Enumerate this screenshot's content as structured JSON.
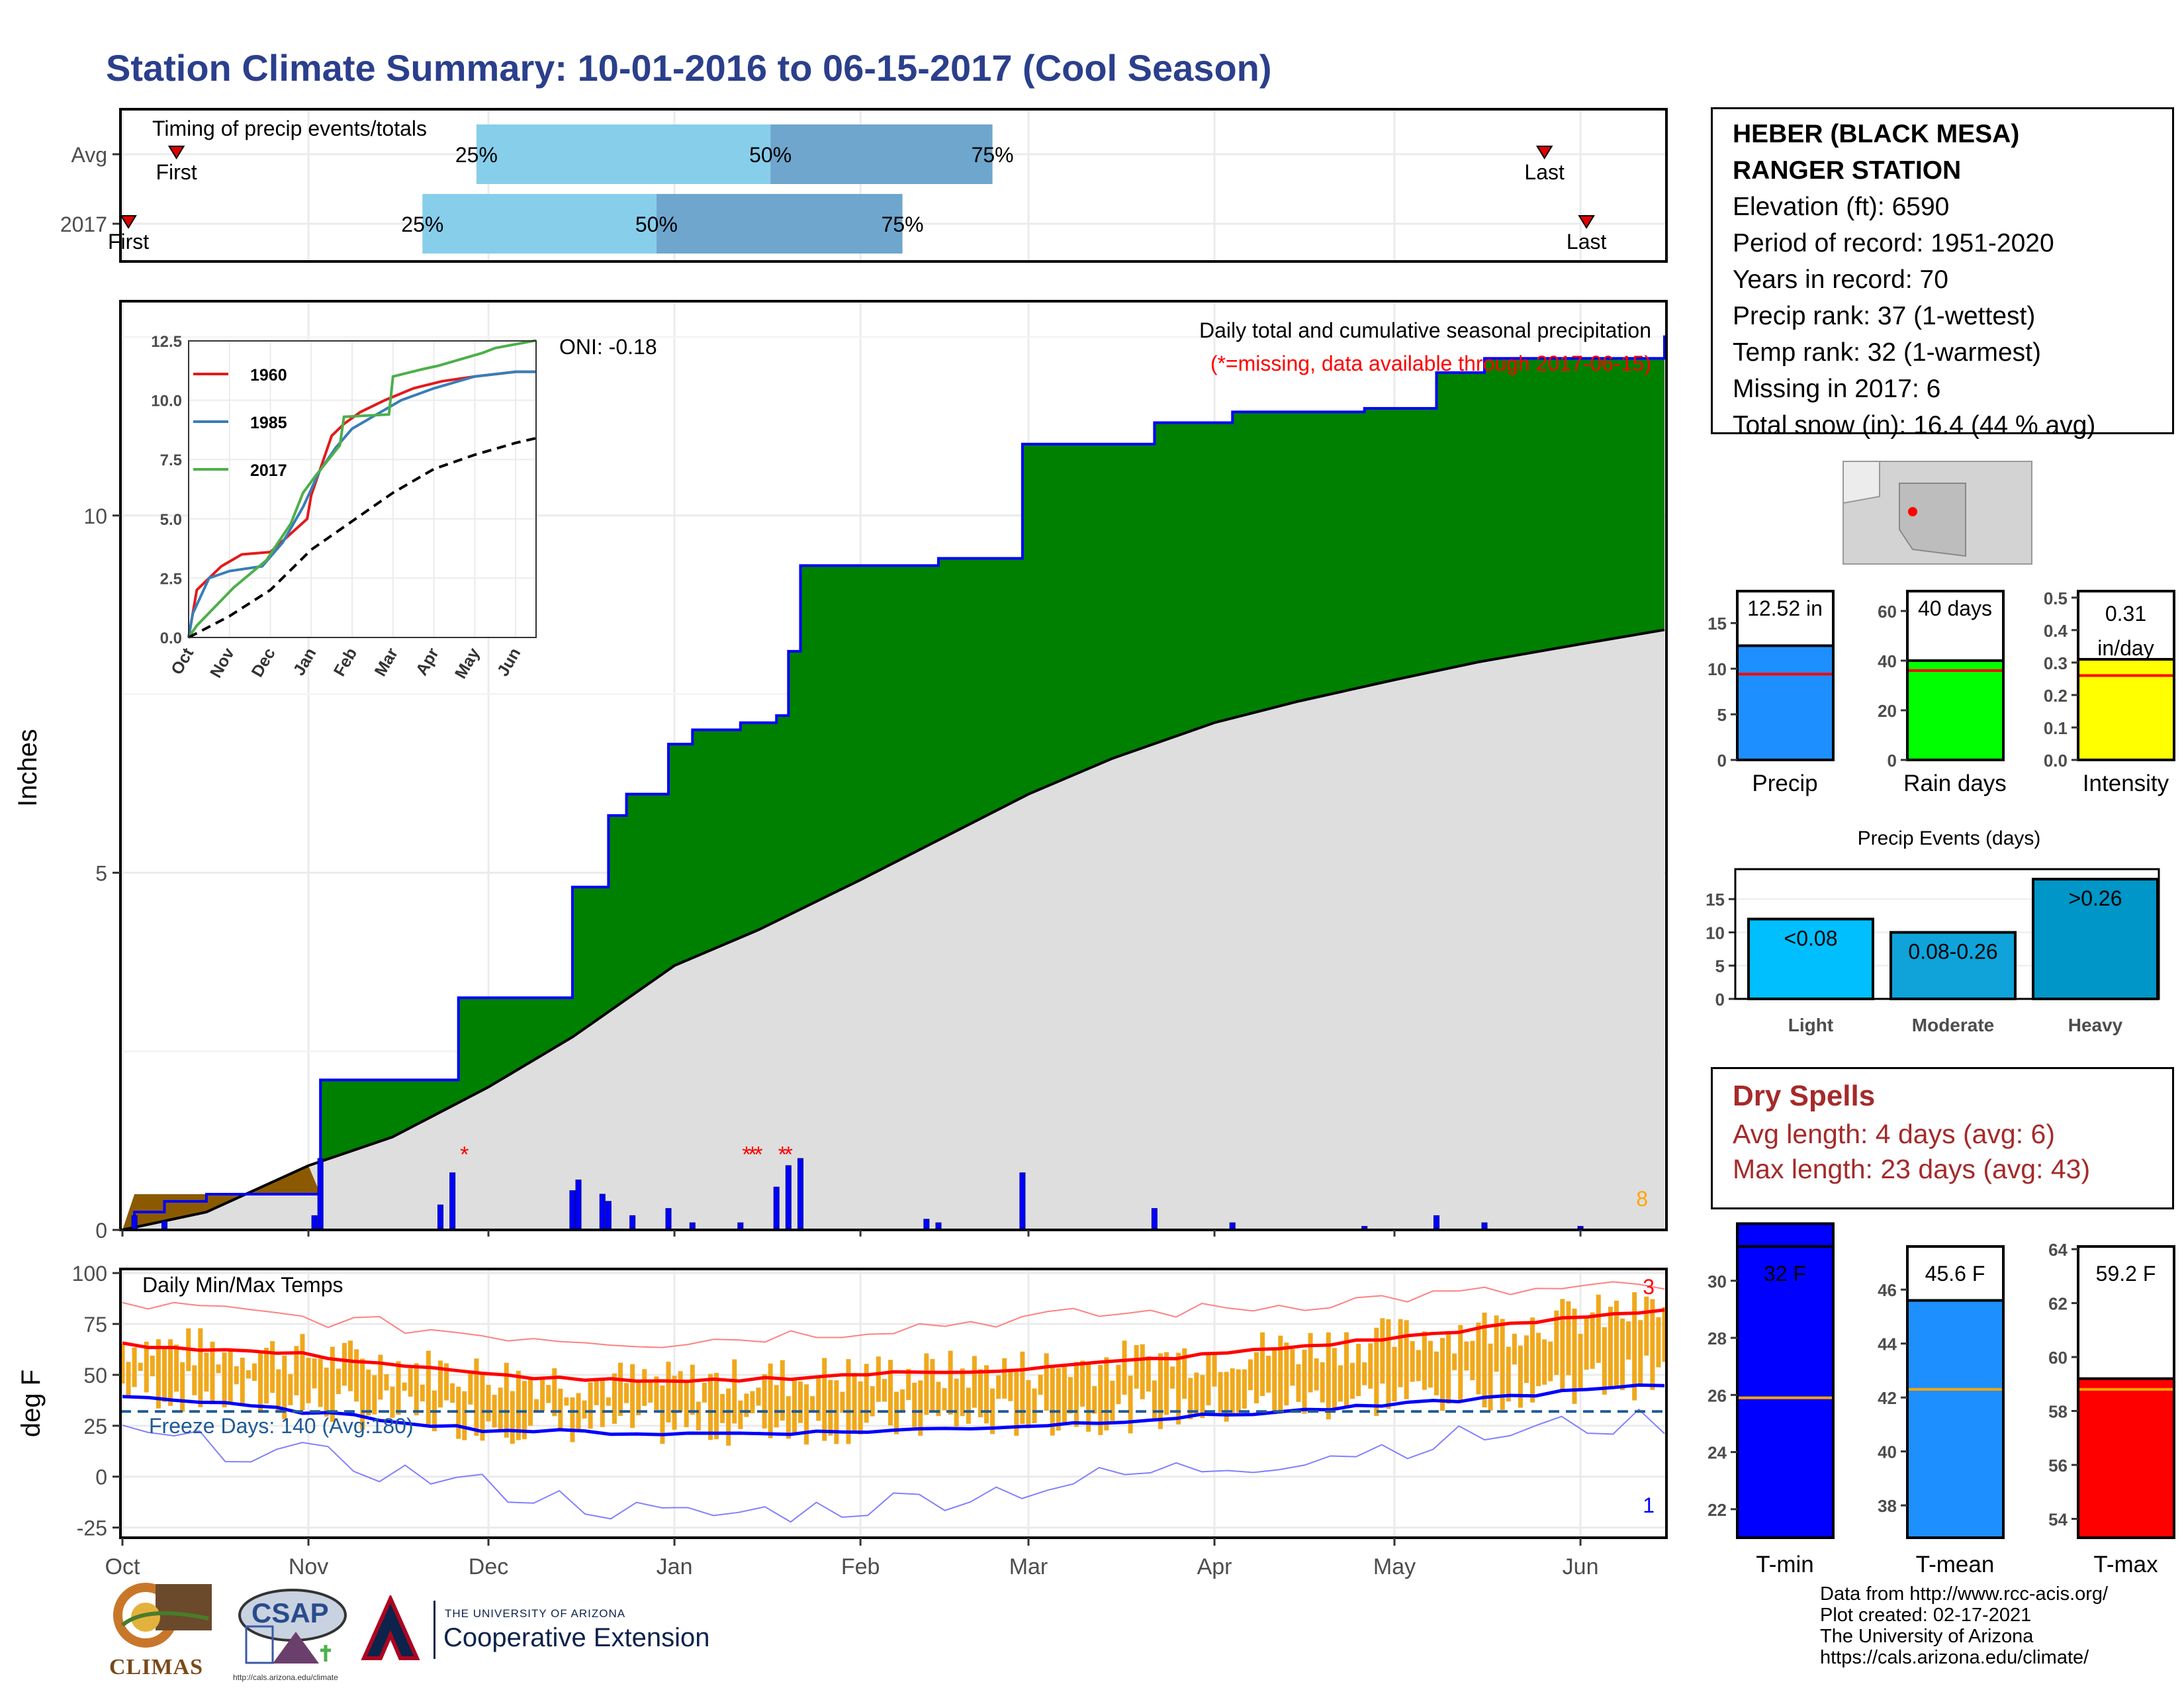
{
  "title": "Station Climate Summary: 10-01-2016 to 06-15-2017 (Cool Season)",
  "station": {
    "name_line1": "HEBER (BLACK MESA)",
    "name_line2": "RANGER STATION",
    "elevation": "Elevation (ft): 6590",
    "period": "Period of record: 1951-2020",
    "years": "Years in record: 70",
    "precip_rank": "Precip rank: 37 (1-wettest)",
    "temp_rank": "Temp rank: 32 (1-warmest)",
    "missing": "Missing in 2017: 6",
    "snow": "Total snow (in): 16.4 (44 % avg)"
  },
  "dry_spells": {
    "heading": "Dry Spells",
    "avg": "Avg length: 4 days (avg: 6)",
    "max": "Max length: 23 days (avg: 43)"
  },
  "credits": {
    "l1": "Data from http://www.rcc-acis.org/",
    "l2": "Plot created: 02-17-2021",
    "l3": "The University of Arizona",
    "l4": "https://cals.arizona.edu/climate/"
  },
  "logos": {
    "climas": "CLIMAS",
    "csap": "CSAP",
    "csap_url": "http://cals.arizona.edu/climate",
    "ua_small": "THE UNIVERSITY OF ARIZONA",
    "ua_big": "Cooperative Extension"
  },
  "colors": {
    "title": "#2b3f8c",
    "green": "#008000",
    "brown": "#8b5a00",
    "gray": "#dedede",
    "blue": "#0000ff",
    "orange": "#f0a81c",
    "red": "#ff0000",
    "lightblue": "#87ceeb",
    "steelblue": "#6ea6cd",
    "yellow": "#ffff00",
    "lime": "#00ff00",
    "dodger": "#1e8fff",
    "events_blue": "#00bfff",
    "dry_text": "#a52a2a"
  },
  "chart_data": [
    {
      "id": "timing",
      "type": "bar",
      "title": "Timing of precip events/totals",
      "categories": [
        "Avg",
        "2017"
      ],
      "x_ticks": [],
      "quartile_labels": [
        "25%",
        "50%",
        "75%"
      ],
      "marker_labels": {
        "first": "First",
        "last": "Last"
      },
      "series": [
        {
          "name": "Avg",
          "first": "2016-10-10",
          "q25": "2016-11-29",
          "q50": "2017-01-17",
          "q75": "2017-02-23",
          "last": "2017-05-26"
        },
        {
          "name": "2017",
          "first": "2016-10-02",
          "q25": "2016-11-20",
          "q50": "2016-12-29",
          "q75": "2017-02-08",
          "last": "2017-06-02"
        }
      ],
      "xlim": [
        "2016-10-01",
        "2017-06-15"
      ]
    },
    {
      "id": "precip",
      "type": "area",
      "title": "Daily total and cumulative seasonal precipitation",
      "subtitle": "(*=missing, data available through 2017-06-15)",
      "annotation": "ONI: -0.18",
      "corner_count": "8",
      "ylabel": "Inches",
      "ylim": [
        0,
        13.0
      ],
      "y_ticks": [
        0,
        5,
        10
      ],
      "x_ticks": [
        "Oct",
        "Nov",
        "Dec",
        "Jan",
        "Feb",
        "Mar",
        "Apr",
        "May",
        "Jun"
      ],
      "cumulative_2017": [
        [
          "2016-10-01",
          0.0
        ],
        [
          "2016-10-03",
          0.25
        ],
        [
          "2016-10-08",
          0.4
        ],
        [
          "2016-10-15",
          0.5
        ],
        [
          "2016-10-25",
          0.5
        ],
        [
          "2016-11-02",
          0.5
        ],
        [
          "2016-11-03",
          2.1
        ],
        [
          "2016-11-25",
          2.1
        ],
        [
          "2016-11-26",
          3.25
        ],
        [
          "2016-12-14",
          3.25
        ],
        [
          "2016-12-15",
          4.8
        ],
        [
          "2016-12-20",
          4.8
        ],
        [
          "2016-12-21",
          5.8
        ],
        [
          "2016-12-24",
          6.1
        ],
        [
          "2016-12-30",
          6.1
        ],
        [
          "2016-12-31",
          6.8
        ],
        [
          "2017-01-04",
          7.0
        ],
        [
          "2017-01-12",
          7.1
        ],
        [
          "2017-01-18",
          7.2
        ],
        [
          "2017-01-20",
          8.1
        ],
        [
          "2017-01-22",
          9.3
        ],
        [
          "2017-02-12",
          9.3
        ],
        [
          "2017-02-14",
          9.4
        ],
        [
          "2017-02-27",
          9.4
        ],
        [
          "2017-02-28",
          11.0
        ],
        [
          "2017-03-21",
          11.0
        ],
        [
          "2017-03-22",
          11.3
        ],
        [
          "2017-04-03",
          11.3
        ],
        [
          "2017-04-04",
          11.45
        ],
        [
          "2017-04-25",
          11.45
        ],
        [
          "2017-04-26",
          11.5
        ],
        [
          "2017-05-07",
          11.5
        ],
        [
          "2017-05-08",
          12.0
        ],
        [
          "2017-05-15",
          12.0
        ],
        [
          "2017-05-16",
          12.2
        ],
        [
          "2017-06-15",
          12.52
        ]
      ],
      "cumulative_avg": [
        [
          "2016-10-01",
          0.0
        ],
        [
          "2016-10-15",
          0.25
        ],
        [
          "2016-11-01",
          0.9
        ],
        [
          "2016-11-15",
          1.3
        ],
        [
          "2016-12-01",
          2.0
        ],
        [
          "2016-12-15",
          2.7
        ],
        [
          "2017-01-01",
          3.7
        ],
        [
          "2017-01-15",
          4.2
        ],
        [
          "2017-02-01",
          4.9
        ],
        [
          "2017-02-15",
          5.5
        ],
        [
          "2017-03-01",
          6.1
        ],
        [
          "2017-03-15",
          6.6
        ],
        [
          "2017-04-01",
          7.1
        ],
        [
          "2017-04-15",
          7.4
        ],
        [
          "2017-05-01",
          7.7
        ],
        [
          "2017-05-15",
          7.95
        ],
        [
          "2017-06-01",
          8.2
        ],
        [
          "2017-06-15",
          8.4
        ]
      ],
      "daily_bars": [
        [
          "2016-10-03",
          0.2
        ],
        [
          "2016-10-08",
          0.12
        ],
        [
          "2016-11-02",
          0.2
        ],
        [
          "2016-11-03",
          1.0
        ],
        [
          "2016-11-23",
          0.35
        ],
        [
          "2016-11-25",
          0.8
        ],
        [
          "2016-12-15",
          0.55
        ],
        [
          "2016-12-16",
          0.7
        ],
        [
          "2016-12-20",
          0.5
        ],
        [
          "2016-12-21",
          0.4
        ],
        [
          "2016-12-25",
          0.2
        ],
        [
          "2016-12-31",
          0.3
        ],
        [
          "2017-01-04",
          0.1
        ],
        [
          "2017-01-12",
          0.1
        ],
        [
          "2017-01-18",
          0.6
        ],
        [
          "2017-01-20",
          0.9
        ],
        [
          "2017-01-22",
          1.0
        ],
        [
          "2017-02-12",
          0.15
        ],
        [
          "2017-02-14",
          0.1
        ],
        [
          "2017-02-28",
          0.8
        ],
        [
          "2017-03-22",
          0.3
        ],
        [
          "2017-04-04",
          0.1
        ],
        [
          "2017-04-26",
          0.05
        ],
        [
          "2017-05-08",
          0.2
        ],
        [
          "2017-05-16",
          0.1
        ],
        [
          "2017-06-01",
          0.05
        ]
      ],
      "missing_days": [
        "2016-11-27",
        "2017-01-13",
        "2017-01-14",
        "2017-01-15",
        "2017-01-19",
        "2017-01-20"
      ],
      "inset": {
        "type": "line",
        "ylim": [
          0,
          12.5
        ],
        "y_ticks": [
          "0.0",
          "2.5",
          "5.0",
          "7.5",
          "10.0",
          "12.5"
        ],
        "x_ticks": [
          "Oct",
          "Nov",
          "Dec",
          "Jan",
          "Feb",
          "Mar",
          "Apr",
          "May",
          "Jun"
        ],
        "legend": [
          "1960",
          "1985",
          "2017"
        ],
        "series": [
          {
            "name": "1960",
            "color": "#e31a1c",
            "points": [
              [
                0,
                0
              ],
              [
                0.2,
                2.0
              ],
              [
                0.8,
                3.0
              ],
              [
                1.3,
                3.5
              ],
              [
                2.0,
                3.6
              ],
              [
                2.9,
                5.0
              ],
              [
                3.0,
                6.0
              ],
              [
                3.2,
                7.0
              ],
              [
                3.5,
                8.5
              ],
              [
                3.8,
                9.0
              ],
              [
                4.2,
                9.5
              ],
              [
                4.8,
                10.0
              ],
              [
                5.5,
                10.5
              ],
              [
                6.2,
                10.8
              ],
              [
                7.0,
                11.0
              ],
              [
                8.0,
                11.2
              ],
              [
                8.5,
                11.2
              ]
            ]
          },
          {
            "name": "1985",
            "color": "#377eb8",
            "points": [
              [
                0,
                0
              ],
              [
                0.1,
                1.0
              ],
              [
                0.5,
                2.5
              ],
              [
                1.0,
                2.8
              ],
              [
                1.8,
                3.0
              ],
              [
                2.3,
                4.0
              ],
              [
                2.8,
                5.5
              ],
              [
                3.2,
                7.0
              ],
              [
                3.6,
                8.0
              ],
              [
                4.0,
                8.8
              ],
              [
                4.5,
                9.3
              ],
              [
                5.2,
                10.0
              ],
              [
                6.0,
                10.5
              ],
              [
                7.0,
                11.0
              ],
              [
                8.0,
                11.2
              ],
              [
                8.5,
                11.2
              ]
            ]
          },
          {
            "name": "2017",
            "color": "#4daf4a",
            "points": [
              [
                0,
                0
              ],
              [
                0.2,
                0.5
              ],
              [
                1.1,
                2.1
              ],
              [
                1.9,
                3.25
              ],
              [
                2.5,
                4.8
              ],
              [
                2.8,
                6.1
              ],
              [
                3.1,
                6.8
              ],
              [
                3.7,
                8.1
              ],
              [
                3.8,
                9.3
              ],
              [
                4.9,
                9.4
              ],
              [
                5.0,
                11.0
              ],
              [
                5.7,
                11.3
              ],
              [
                6.1,
                11.45
              ],
              [
                7.2,
                12.0
              ],
              [
                7.5,
                12.2
              ],
              [
                8.5,
                12.52
              ]
            ]
          },
          {
            "name": "avg",
            "color": "#000000",
            "dash": true,
            "points": [
              [
                0,
                0
              ],
              [
                1.0,
                0.9
              ],
              [
                2.0,
                2.0
              ],
              [
                3.0,
                3.7
              ],
              [
                4.0,
                4.9
              ],
              [
                5.0,
                6.1
              ],
              [
                6.0,
                7.1
              ],
              [
                7.0,
                7.7
              ],
              [
                8.0,
                8.2
              ],
              [
                8.5,
                8.4
              ]
            ]
          }
        ]
      }
    },
    {
      "id": "bars_precip",
      "type": "bar",
      "categories": [
        "Precip",
        "Rain days",
        "Intensity"
      ],
      "values": [
        12.52,
        40,
        0.31
      ],
      "value_labels": [
        "12.52 in",
        "40 days",
        "0.31 in/day"
      ],
      "averages": [
        9.4,
        36,
        0.26
      ],
      "ylims": [
        [
          0,
          18.5
        ],
        [
          0,
          68
        ],
        [
          0,
          0.52
        ]
      ],
      "y_ticks": [
        [
          "0",
          "5",
          "10",
          "15"
        ],
        [
          "0",
          "20",
          "40",
          "60"
        ],
        [
          "0.0",
          "0.1",
          "0.2",
          "0.3",
          "0.4",
          "0.5"
        ]
      ]
    },
    {
      "id": "precip_events",
      "type": "bar",
      "title": "Precip Events (days)",
      "categories": [
        "Light",
        "Moderate",
        "Heavy"
      ],
      "bar_labels": [
        "<0.08",
        "0.08-0.26",
        ">0.26"
      ],
      "values": [
        12,
        10,
        18
      ],
      "ylim": [
        0,
        19.5
      ],
      "y_ticks": [
        "0",
        "5",
        "10",
        "15"
      ]
    },
    {
      "id": "temps",
      "type": "line",
      "title": "Daily Min/Max Temps",
      "ylabel": "deg F",
      "ylim": [
        -30,
        102
      ],
      "y_ticks": [
        "-25",
        "0",
        "25",
        "50",
        "75",
        "100"
      ],
      "x_ticks": [
        "Oct",
        "Nov",
        "Dec",
        "Jan",
        "Feb",
        "Mar",
        "Apr",
        "May",
        "Jun"
      ],
      "freeze_label": "Freeze Days: 140 (Avg:180)",
      "freeze_line": 32,
      "top_count": "3",
      "bottom_count": "1",
      "avg_max": [
        [
          0,
          65
        ],
        [
          1,
          60
        ],
        [
          2,
          50
        ],
        [
          3,
          46
        ],
        [
          4,
          50
        ],
        [
          5,
          53
        ],
        [
          6,
          60
        ],
        [
          7,
          68
        ],
        [
          8,
          78
        ],
        [
          8.5,
          82
        ]
      ],
      "avg_min": [
        [
          0,
          40
        ],
        [
          1,
          32
        ],
        [
          2,
          23
        ],
        [
          3,
          21
        ],
        [
          4,
          22
        ],
        [
          5,
          25
        ],
        [
          6,
          30
        ],
        [
          7,
          35
        ],
        [
          8,
          42
        ],
        [
          8.5,
          45
        ]
      ],
      "record_max": [
        [
          0,
          85
        ],
        [
          1,
          78
        ],
        [
          2,
          70
        ],
        [
          3,
          66
        ],
        [
          4,
          72
        ],
        [
          5,
          78
        ],
        [
          6,
          82
        ],
        [
          7,
          88
        ],
        [
          8,
          92
        ],
        [
          8.5,
          93
        ]
      ],
      "record_min": [
        [
          0,
          20
        ],
        [
          1,
          10
        ],
        [
          2,
          -5
        ],
        [
          3,
          -20
        ],
        [
          4,
          -15
        ],
        [
          5,
          -5
        ],
        [
          6,
          5
        ],
        [
          7,
          15
        ],
        [
          8,
          25
        ],
        [
          8.5,
          27
        ]
      ]
    },
    {
      "id": "bars_temp",
      "type": "bar",
      "categories": [
        "T-min",
        "T-mean",
        "T-max"
      ],
      "values": [
        32,
        45.6,
        59.2
      ],
      "value_labels": [
        "32 F",
        "45.6 F",
        "59.2 F"
      ],
      "averages": [
        25.9,
        42.3,
        58.8
      ],
      "ylims": [
        [
          21,
          31.2
        ],
        [
          36.8,
          47.6
        ],
        [
          53.3,
          64.1
        ]
      ],
      "y_ticks": [
        [
          "22",
          "24",
          "26",
          "28",
          "30"
        ],
        [
          "38",
          "40",
          "42",
          "44",
          "46"
        ],
        [
          "54",
          "56",
          "58",
          "60",
          "62",
          "64"
        ]
      ]
    }
  ]
}
